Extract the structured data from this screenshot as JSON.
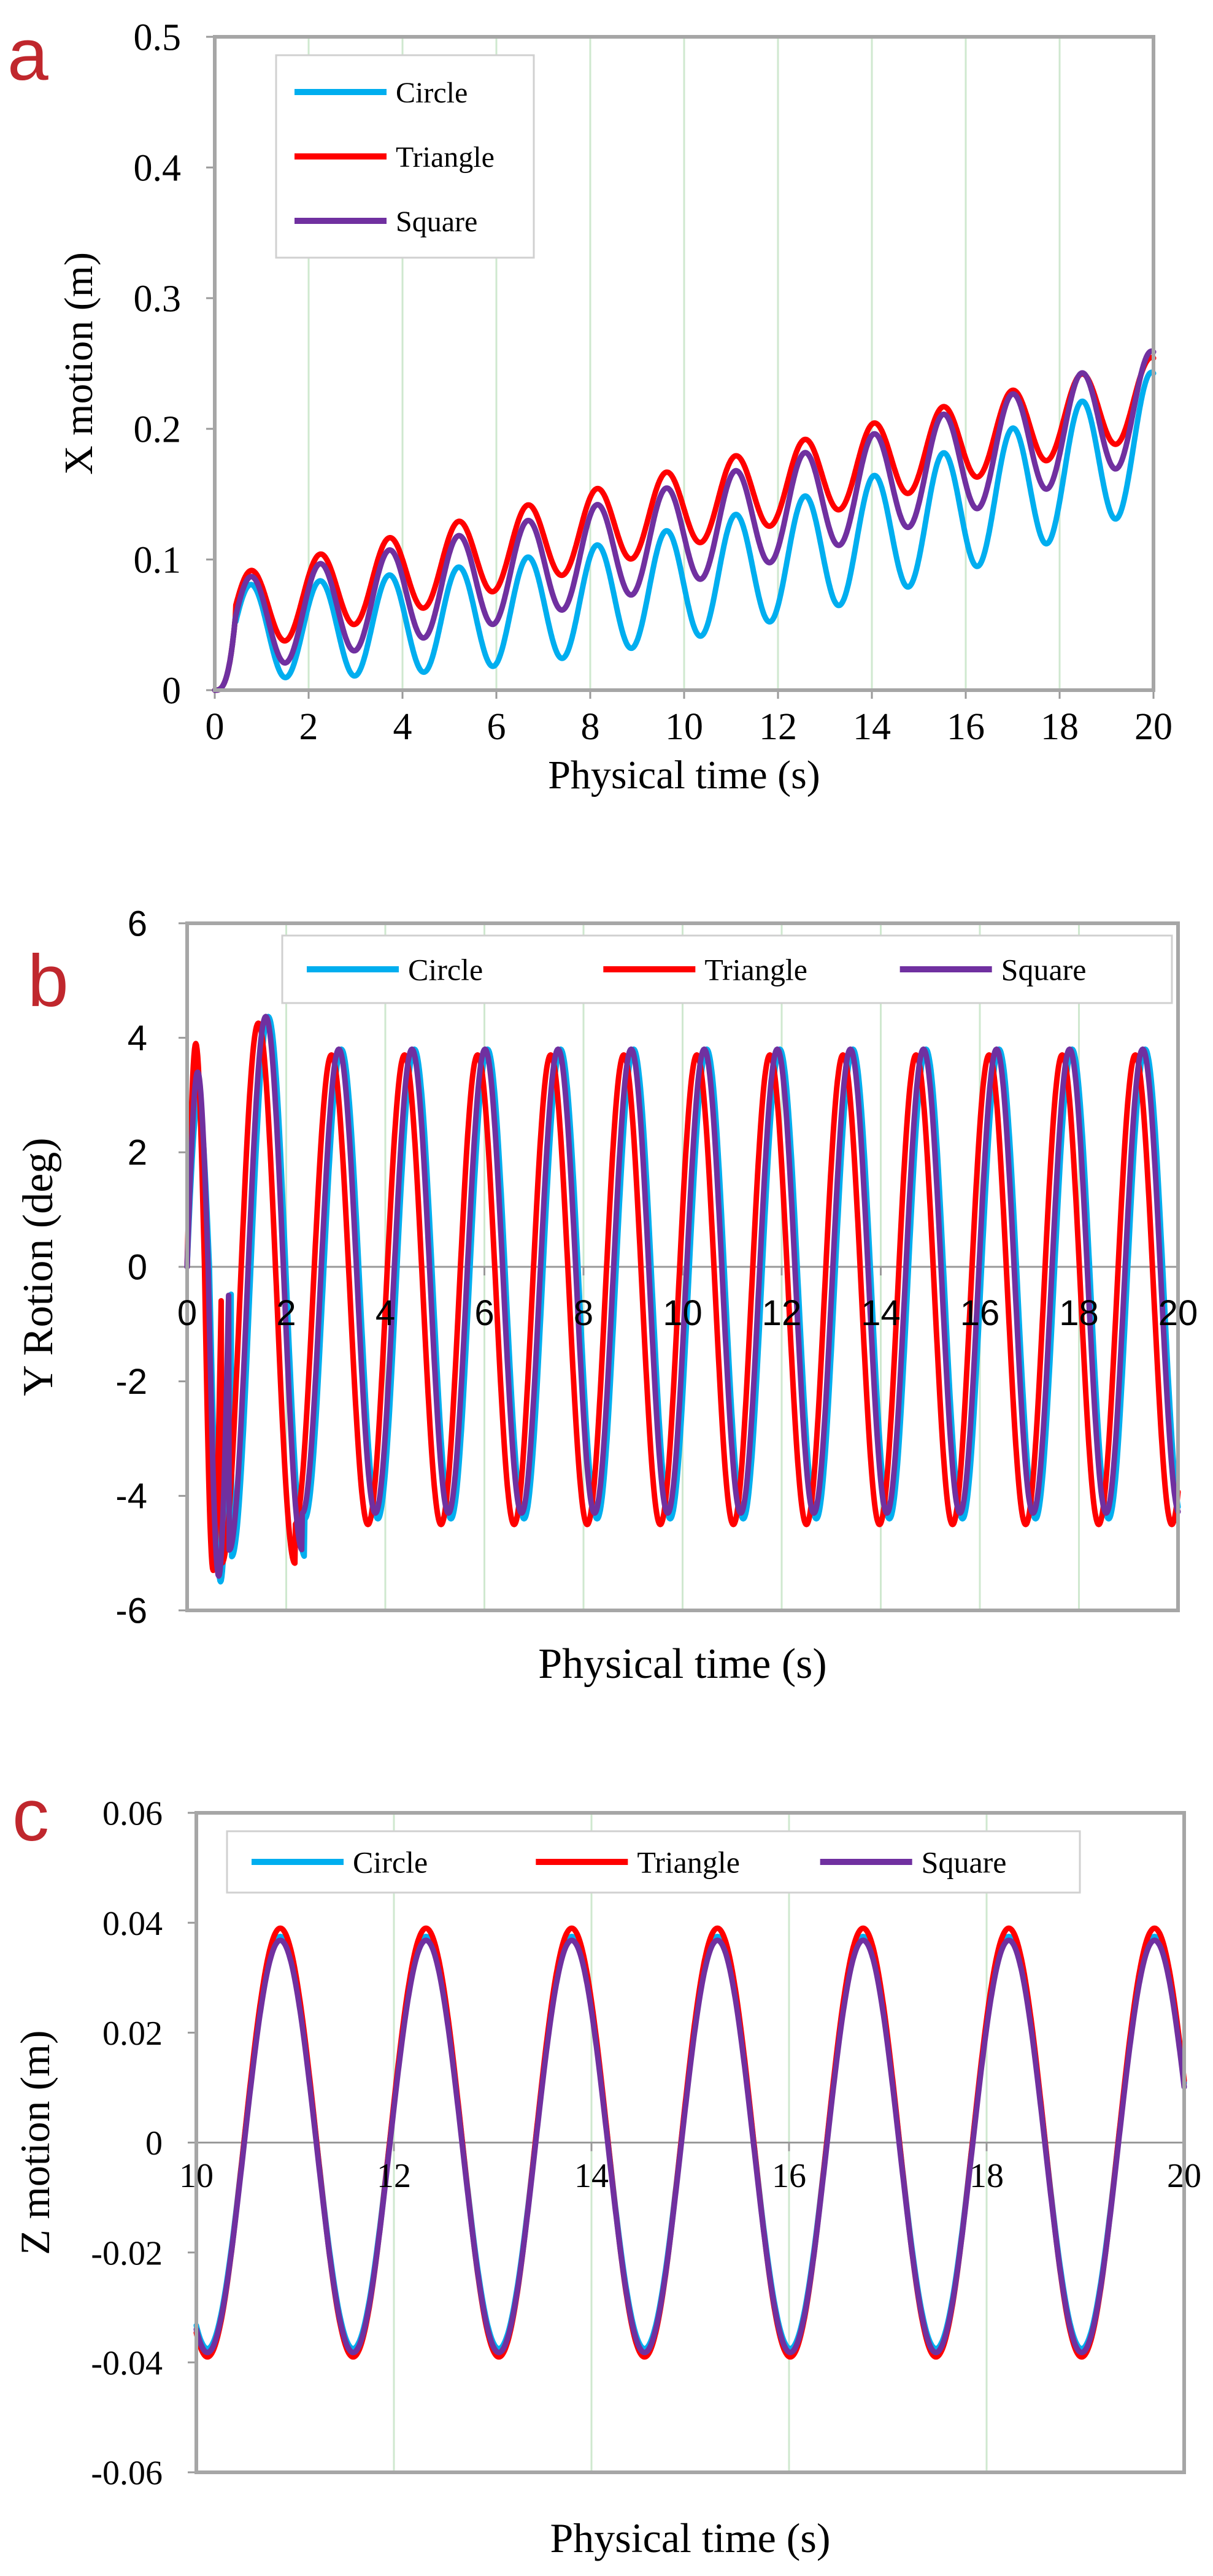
{
  "figure": {
    "panels": [
      "a",
      "b",
      "c"
    ],
    "colors": {
      "circle": "#00AEEF",
      "triangle": "#FF0000",
      "square": "#7030A0",
      "panel_letter": "#C0272D",
      "grid": "#CFE8CF",
      "frame": "#A6A6A6"
    }
  },
  "chart_data": [
    {
      "panel": "a",
      "type": "line",
      "title": "",
      "xlabel": "Physical time  (s)",
      "ylabel": "X motion (m)",
      "xlim": [
        0,
        20
      ],
      "ylim": [
        0,
        0.5
      ],
      "xticks": [
        0,
        2,
        4,
        6,
        8,
        10,
        12,
        14,
        16,
        18,
        20
      ],
      "yticks": [
        0,
        0.1,
        0.2,
        0.3,
        0.4,
        0.5
      ],
      "xtick_labels": [
        "0",
        "2",
        "4",
        "6",
        "8",
        "10",
        "12",
        "14",
        "16",
        "18",
        "20"
      ],
      "ytick_labels": [
        "0",
        "0.1",
        "0.2",
        "0.3",
        "0.4",
        "0.5"
      ],
      "grid": "vertical",
      "legend_position": "top-left",
      "series": [
        {
          "name": "Circle",
          "color": "#00AEEF",
          "drift": [
            0.045,
            0.0,
            0.00037
          ],
          "amplitude": [
            0.035,
            0.0008
          ],
          "period": 1.475,
          "phase": 0.0,
          "start": 0.45
        },
        {
          "name": "Triangle",
          "color": "#FF0000",
          "drift": [
            0.055,
            0.0085,
            0.0
          ],
          "amplitude": [
            0.03,
            0.0
          ],
          "period": 1.475,
          "phase": 0.0,
          "start": 0.45
        },
        {
          "name": "Square",
          "color": "#7030A0",
          "drift": [
            0.047,
            0.006,
            0.00013
          ],
          "amplitude": [
            0.035,
            0.0003
          ],
          "period": 1.475,
          "phase": 0.0,
          "start": 0.45
        }
      ]
    },
    {
      "panel": "b",
      "type": "line",
      "title": "",
      "xlabel": "Physical time  (s)",
      "ylabel": "Y Rotion  (deg)",
      "xlim": [
        0,
        20
      ],
      "ylim": [
        -6,
        6
      ],
      "xticks": [
        0,
        2,
        4,
        6,
        8,
        10,
        12,
        14,
        16,
        18,
        20
      ],
      "yticks": [
        -6,
        -4,
        -2,
        0,
        2,
        4,
        6
      ],
      "xtick_labels": [
        "0",
        "2",
        "4",
        "6",
        "8",
        "10",
        "12",
        "14",
        "16",
        "18",
        "20"
      ],
      "ytick_labels": [
        "-6",
        "-4",
        "-2",
        "0",
        "2",
        "4",
        "6"
      ],
      "grid": "vertical",
      "legend_position": "top",
      "series": [
        {
          "name": "Circle",
          "color": "#00AEEF",
          "max": 3.8,
          "min": -4.4,
          "first_max": 2.9,
          "first_min": -5.5,
          "period": 1.475,
          "first_period": 0.9
        },
        {
          "name": "Triangle",
          "color": "#FF0000",
          "max": 3.7,
          "min": -4.5,
          "first_max": 3.9,
          "first_min": -5.3,
          "period": 1.475,
          "first_period": 0.7
        },
        {
          "name": "Square",
          "color": "#7030A0",
          "max": 3.8,
          "min": -4.3,
          "first_max": 3.4,
          "first_min": -5.4,
          "period": 1.475,
          "first_period": 0.85
        }
      ]
    },
    {
      "panel": "c",
      "type": "line",
      "title": "",
      "xlabel": "Physical time  (s)",
      "ylabel": "Z motion  (m)",
      "xlim": [
        10,
        20
      ],
      "ylim": [
        -0.06,
        0.06
      ],
      "xticks": [
        10,
        12,
        14,
        16,
        18,
        20
      ],
      "yticks": [
        -0.06,
        -0.04,
        -0.02,
        0,
        0.02,
        0.04,
        0.06
      ],
      "xtick_labels": [
        "10",
        "12",
        "14",
        "16",
        "18",
        "20"
      ],
      "ytick_labels": [
        "-0.06",
        "-0.04",
        "-0.02",
        "0",
        "0.02",
        "0.04",
        "0.06"
      ],
      "grid": "vertical",
      "legend_position": "top",
      "series": [
        {
          "name": "Circle",
          "color": "#00AEEF",
          "amplitude": 0.0375,
          "period": 1.475,
          "first_peak": 10.85,
          "offset": 0.0
        },
        {
          "name": "Triangle",
          "color": "#FF0000",
          "amplitude": 0.039,
          "period": 1.475,
          "first_peak": 10.85,
          "offset": 0.0
        },
        {
          "name": "Square",
          "color": "#7030A0",
          "amplitude": 0.0375,
          "period": 1.475,
          "first_peak": 10.85,
          "offset": -0.0007
        }
      ]
    }
  ]
}
